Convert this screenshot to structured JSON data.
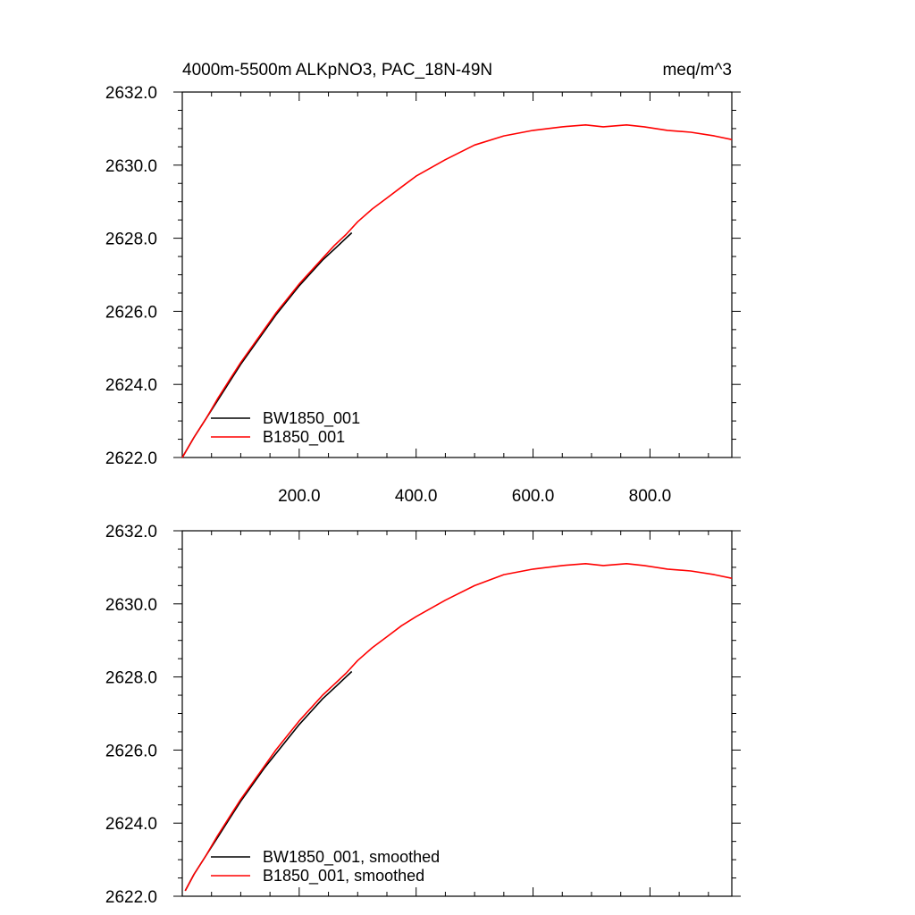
{
  "chart_data": [
    {
      "type": "line",
      "title_left": "4000m-5500m ALKpNO3, PAC_18N-49N",
      "title_right": "meq/m^3",
      "xlim": [
        0,
        940
      ],
      "ylim": [
        2622,
        2632
      ],
      "x_ticks": [
        200,
        400,
        600,
        800
      ],
      "x_tick_labels": [
        "200.0",
        "400.0",
        "600.0",
        "800.0"
      ],
      "y_ticks": [
        2622,
        2624,
        2626,
        2628,
        2630,
        2632
      ],
      "y_tick_labels": [
        "2622.0",
        "2624.0",
        "2626.0",
        "2628.0",
        "2630.0",
        "2632.0"
      ],
      "series": [
        {
          "name": "BW1850_001",
          "color": "#000000",
          "x": [
            0,
            20,
            40,
            60,
            80,
            100,
            120,
            140,
            160,
            180,
            200,
            220,
            240,
            260,
            280,
            290
          ],
          "y": [
            2622.0,
            2622.55,
            2623.05,
            2623.55,
            2624.05,
            2624.55,
            2625.0,
            2625.45,
            2625.9,
            2626.3,
            2626.7,
            2627.05,
            2627.4,
            2627.7,
            2628.0,
            2628.15
          ]
        },
        {
          "name": "B1850_001",
          "color": "#ff0000",
          "x": [
            0,
            20,
            40,
            60,
            80,
            100,
            120,
            140,
            160,
            180,
            200,
            220,
            240,
            260,
            280,
            300,
            325,
            350,
            375,
            400,
            450,
            500,
            550,
            600,
            650,
            690,
            720,
            760,
            790,
            830,
            870,
            910,
            940
          ],
          "y": [
            2622.0,
            2622.55,
            2623.05,
            2623.6,
            2624.1,
            2624.6,
            2625.05,
            2625.5,
            2625.95,
            2626.35,
            2626.75,
            2627.1,
            2627.45,
            2627.8,
            2628.1,
            2628.45,
            2628.8,
            2629.1,
            2629.4,
            2629.7,
            2630.15,
            2630.55,
            2630.8,
            2630.95,
            2631.05,
            2631.1,
            2631.05,
            2631.1,
            2631.05,
            2630.95,
            2630.9,
            2630.8,
            2630.7
          ]
        }
      ]
    },
    {
      "type": "line",
      "xlim": [
        0,
        940
      ],
      "ylim": [
        2622,
        2632
      ],
      "x_ticks": [
        200,
        400,
        600,
        800
      ],
      "y_ticks": [
        2622,
        2624,
        2626,
        2628,
        2630,
        2632
      ],
      "y_tick_labels": [
        "2622.0",
        "2624.0",
        "2626.0",
        "2628.0",
        "2630.0",
        "2632.0"
      ],
      "series": [
        {
          "name": "BW1850_001, smoothed",
          "color": "#000000",
          "x": [
            5,
            20,
            40,
            60,
            80,
            100,
            120,
            140,
            160,
            180,
            200,
            220,
            240,
            260,
            280,
            290
          ],
          "y": [
            2622.15,
            2622.6,
            2623.1,
            2623.6,
            2624.1,
            2624.6,
            2625.05,
            2625.5,
            2625.9,
            2626.3,
            2626.7,
            2627.05,
            2627.4,
            2627.7,
            2628.0,
            2628.15
          ]
        },
        {
          "name": "B1850_001, smoothed",
          "color": "#ff0000",
          "x": [
            5,
            20,
            40,
            60,
            80,
            100,
            120,
            140,
            160,
            180,
            200,
            220,
            240,
            260,
            280,
            300,
            325,
            350,
            375,
            400,
            450,
            500,
            550,
            600,
            650,
            690,
            720,
            760,
            790,
            830,
            870,
            910,
            940
          ],
          "y": [
            2622.15,
            2622.6,
            2623.1,
            2623.65,
            2624.15,
            2624.65,
            2625.1,
            2625.55,
            2626.0,
            2626.4,
            2626.8,
            2627.15,
            2627.5,
            2627.8,
            2628.1,
            2628.45,
            2628.8,
            2629.1,
            2629.4,
            2629.65,
            2630.1,
            2630.5,
            2630.8,
            2630.95,
            2631.05,
            2631.1,
            2631.05,
            2631.1,
            2631.05,
            2630.95,
            2630.9,
            2630.8,
            2630.7
          ]
        }
      ]
    }
  ]
}
